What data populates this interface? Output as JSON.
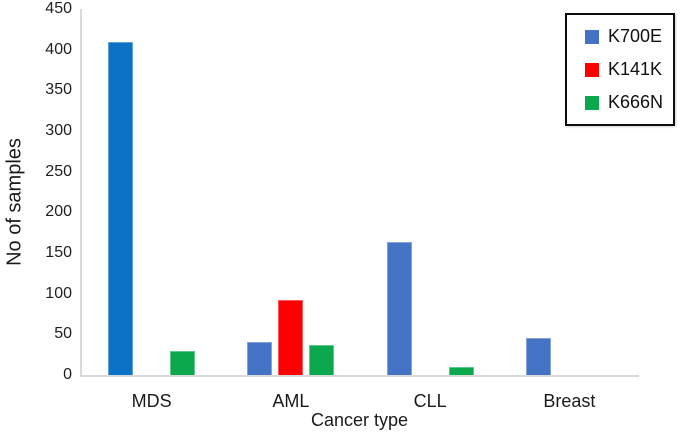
{
  "chart_data": {
    "type": "bar",
    "title": "",
    "xlabel": "Cancer type",
    "ylabel": "No of samples",
    "categories": [
      "MDS",
      "AML",
      "CLL",
      "Breast"
    ],
    "series": [
      {
        "name": "K700E",
        "color": "#4472C4",
        "values": [
          410,
          40,
          163,
          45
        ],
        "bar_colors": [
          "#0B72C5",
          "#4472C4",
          "#4472C4",
          "#4472C4"
        ]
      },
      {
        "name": "K141K",
        "color": "#FF0000",
        "values": [
          0,
          92,
          0,
          0
        ]
      },
      {
        "name": "K666N",
        "color": "#0CA84D",
        "values": [
          30,
          37,
          10,
          0
        ]
      }
    ],
    "ylim": [
      0,
      450
    ],
    "y_ticks": [
      0,
      50,
      100,
      150,
      200,
      250,
      300,
      350,
      400,
      450
    ],
    "grid": false,
    "legend_position": "top-right",
    "axis_color": "#D9D9D9",
    "text_color": "#1A1A1A",
    "legend_border_color": "#0D0D0D"
  }
}
